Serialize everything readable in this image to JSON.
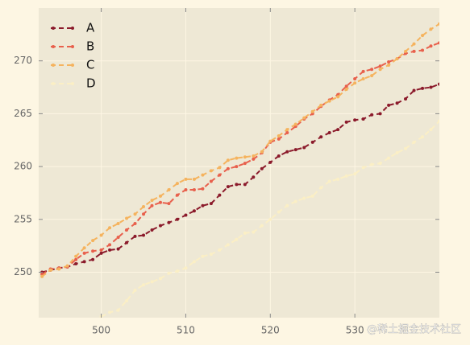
{
  "chart_data": {
    "type": "line",
    "x": [
      493,
      494,
      495,
      496,
      497,
      498,
      499,
      500,
      501,
      502,
      503,
      504,
      505,
      506,
      507,
      508,
      509,
      510,
      511,
      512,
      513,
      514,
      515,
      516,
      517,
      518,
      519,
      520,
      521,
      522,
      523,
      524,
      525,
      526,
      527,
      528,
      529,
      530,
      531,
      532,
      533,
      534,
      535,
      536,
      537,
      538,
      539,
      540
    ],
    "series": [
      {
        "name": "A",
        "color": "#8b1a2b",
        "values": [
          250.0,
          250.2,
          250.4,
          250.5,
          250.8,
          251.0,
          251.2,
          251.8,
          252.1,
          252.2,
          252.8,
          253.4,
          253.5,
          254.0,
          254.4,
          254.7,
          255.0,
          255.4,
          255.8,
          256.3,
          256.5,
          257.3,
          258.1,
          258.3,
          258.3,
          259.0,
          259.8,
          260.4,
          261.0,
          261.4,
          261.6,
          261.8,
          262.3,
          262.8,
          263.2,
          263.5,
          264.2,
          264.4,
          264.5,
          264.9,
          265.0,
          265.8,
          266.0,
          266.4,
          267.2,
          267.4,
          267.5,
          267.8
        ]
      },
      {
        "name": "B",
        "color": "#e8604c",
        "values": [
          249.8,
          250.3,
          250.4,
          250.5,
          251.2,
          251.8,
          252.0,
          252.1,
          252.6,
          253.3,
          254.0,
          254.6,
          255.5,
          256.3,
          256.6,
          256.5,
          257.3,
          257.8,
          257.8,
          257.9,
          258.6,
          259.2,
          259.8,
          260.0,
          260.3,
          260.7,
          261.3,
          262.3,
          262.6,
          263.2,
          263.8,
          264.5,
          265.0,
          265.7,
          266.3,
          266.8,
          267.6,
          268.3,
          269.0,
          269.2,
          269.5,
          269.9,
          270.2,
          270.7,
          270.9,
          271.0,
          271.4,
          271.7
        ]
      },
      {
        "name": "C",
        "color": "#f5b35e",
        "values": [
          249.6,
          250.2,
          250.3,
          250.6,
          251.5,
          252.3,
          253.0,
          253.5,
          254.2,
          254.6,
          255.1,
          255.5,
          256.2,
          256.8,
          257.2,
          257.8,
          258.4,
          258.8,
          258.8,
          259.2,
          259.6,
          259.9,
          260.6,
          260.8,
          260.9,
          261.0,
          261.4,
          262.4,
          262.9,
          263.5,
          264.0,
          264.6,
          265.2,
          265.8,
          266.2,
          266.6,
          267.3,
          267.9,
          268.3,
          268.6,
          269.2,
          269.6,
          270.2,
          270.9,
          271.6,
          272.4,
          273.0,
          273.5
        ]
      },
      {
        "name": "D",
        "color": "#fbefc5",
        "values": [
          null,
          null,
          null,
          null,
          null,
          null,
          null,
          245.8,
          246.2,
          246.4,
          247.3,
          248.3,
          248.8,
          249.1,
          249.4,
          249.9,
          250.1,
          250.4,
          251.0,
          251.5,
          251.7,
          252.1,
          252.6,
          253.1,
          253.7,
          253.8,
          254.4,
          255.0,
          255.7,
          256.3,
          256.7,
          257.0,
          257.2,
          258.0,
          258.6,
          258.8,
          259.1,
          259.3,
          259.9,
          260.2,
          260.3,
          260.8,
          261.3,
          261.7,
          262.3,
          262.8,
          263.5,
          264.3
        ]
      }
    ],
    "xlim": [
      492.6,
      540
    ],
    "ylim": [
      245.7,
      275
    ],
    "xticks": [
      500,
      510,
      520,
      530
    ],
    "yticks": [
      250,
      255,
      260,
      265,
      270
    ],
    "grid": true,
    "legend": "upper left",
    "watermark": "@稀土掘金技术社区"
  }
}
